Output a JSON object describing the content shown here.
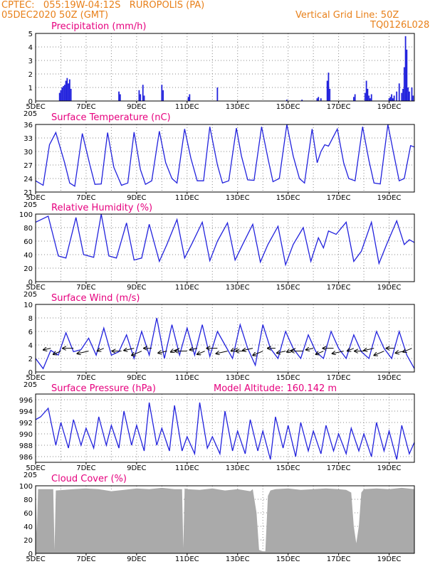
{
  "header": {
    "line1": "CPTEC:   055:19W-04:12S   RUROPOLIS (PA)",
    "line2": "05DEC2020 50Z (GMT)",
    "grid_note": "Vertical Grid Line: 50Z",
    "code": "TQ0126L028"
  },
  "colors": {
    "header": "#e8801a",
    "title": "#e6007e",
    "line": "#2222dd",
    "cloud": "#aaaaaa",
    "frame": "#000000",
    "grid": "#888888"
  },
  "chart_data": [
    {
      "type": "bar",
      "title": "Precipitation (mm/h)",
      "x_ticks": [
        "5DEC",
        "7DEC",
        "9DEC",
        "11DEC",
        "13DEC",
        "15DEC",
        "17DEC",
        "19DEC"
      ],
      "xlim": [
        5,
        20
      ],
      "y_ticks": [
        "0",
        "1",
        "2",
        "3",
        "4",
        "5"
      ],
      "ylim": [
        0,
        5
      ],
      "grid": true,
      "x": [
        5.95,
        6.0,
        6.05,
        6.1,
        6.15,
        6.2,
        6.25,
        6.3,
        6.35,
        6.4,
        8.3,
        8.35,
        9.1,
        9.15,
        9.25,
        9.3,
        10.0,
        10.05,
        11.05,
        11.1,
        12.2,
        14.95,
        15.55,
        16.15,
        16.2,
        16.3,
        16.55,
        16.6,
        16.65,
        17.6,
        17.65,
        18.05,
        18.1,
        18.15,
        18.2,
        18.25,
        18.3,
        19.9,
        19.95,
        19.0,
        19.05,
        19.1,
        19.15,
        19.2,
        19.3,
        19.4,
        19.5,
        19.55,
        19.6,
        19.65,
        19.7,
        19.75,
        19.8
      ],
      "values": [
        0.6,
        0.8,
        1.0,
        1.1,
        1.2,
        1.5,
        1.7,
        1.3,
        1.6,
        0.9,
        0.7,
        0.5,
        0.8,
        0.5,
        1.2,
        0.4,
        1.2,
        0.8,
        0.3,
        0.5,
        1.0,
        0.1,
        0.1,
        0.2,
        0.3,
        0.2,
        1.5,
        2.1,
        0.9,
        0.3,
        0.5,
        0.6,
        1.5,
        0.9,
        0.4,
        0.2,
        0.5,
        1.0,
        0.4,
        0.2,
        0.3,
        0.5,
        0.2,
        0.4,
        0.7,
        1.3,
        0.6,
        0.9,
        2.5,
        4.8,
        3.8,
        1.0,
        0.7
      ],
      "subtitle": "205"
    },
    {
      "type": "line",
      "title": "Surface Temperature (nC)",
      "x_ticks": [
        "5DEC",
        "7DEC",
        "9DEC",
        "11DEC",
        "13DEC",
        "15DEC",
        "17DEC",
        "19DEC"
      ],
      "xlim": [
        5,
        20
      ],
      "y_ticks": [
        "21",
        "24",
        "27",
        "30",
        "33",
        "36"
      ],
      "ylim": [
        21,
        36
      ],
      "grid": true,
      "x": [
        5.0,
        5.3,
        5.55,
        5.8,
        6.15,
        6.35,
        6.55,
        6.85,
        7.15,
        7.35,
        7.6,
        7.85,
        8.1,
        8.4,
        8.65,
        8.9,
        9.15,
        9.35,
        9.6,
        9.9,
        10.15,
        10.4,
        10.6,
        10.9,
        11.15,
        11.4,
        11.65,
        11.9,
        12.2,
        12.4,
        12.65,
        12.95,
        13.15,
        13.4,
        13.65,
        13.95,
        14.2,
        14.4,
        14.65,
        14.95,
        15.2,
        15.45,
        15.65,
        15.95,
        16.15,
        16.3,
        16.45,
        16.6,
        16.95,
        17.2,
        17.4,
        17.65,
        17.95,
        18.2,
        18.4,
        18.65,
        18.95,
        19.2,
        19.4,
        19.6,
        19.85,
        20.0
      ],
      "values": [
        23.5,
        22.5,
        31.5,
        34.2,
        27.5,
        23.0,
        22.3,
        34.0,
        27.0,
        22.7,
        22.8,
        34.2,
        26.5,
        22.5,
        23.0,
        34.3,
        26.0,
        22.7,
        23.5,
        34.5,
        27.5,
        24.0,
        23.0,
        35.0,
        28.5,
        23.5,
        23.5,
        35.5,
        27.0,
        23.0,
        23.5,
        35.2,
        29.0,
        23.7,
        23.6,
        35.5,
        28.5,
        23.3,
        24.0,
        36.0,
        29.0,
        24.0,
        23.0,
        35.0,
        27.5,
        30.0,
        31.5,
        31.2,
        35.0,
        27.5,
        24.0,
        23.5,
        35.5,
        28.0,
        23.0,
        22.8,
        36.0,
        29.0,
        23.5,
        24.0,
        31.3,
        31.0
      ],
      "subtitle": "205"
    },
    {
      "type": "line",
      "title": "Relative Humidity (%)",
      "x_ticks": [
        "5DEC",
        "7DEC",
        "9DEC",
        "11DEC",
        "13DEC",
        "15DEC",
        "17DEC",
        "19DEC"
      ],
      "xlim": [
        5,
        20
      ],
      "y_ticks": [
        "0",
        "20",
        "40",
        "60",
        "80",
        "100"
      ],
      "ylim": [
        0,
        100
      ],
      "grid": true,
      "x": [
        5.0,
        5.5,
        5.9,
        6.2,
        6.6,
        6.9,
        7.3,
        7.6,
        7.9,
        8.2,
        8.6,
        8.9,
        9.2,
        9.5,
        9.9,
        10.2,
        10.6,
        10.9,
        11.2,
        11.6,
        11.9,
        12.2,
        12.6,
        12.9,
        13.2,
        13.6,
        13.9,
        14.2,
        14.6,
        14.9,
        15.2,
        15.6,
        15.9,
        16.2,
        16.4,
        16.6,
        16.9,
        17.3,
        17.6,
        17.9,
        18.3,
        18.6,
        18.9,
        19.3,
        19.6,
        19.8,
        20.0
      ],
      "values": [
        88,
        97,
        38,
        35,
        95,
        40,
        36,
        100,
        38,
        35,
        87,
        32,
        35,
        85,
        30,
        55,
        92,
        35,
        57,
        88,
        31,
        60,
        87,
        32,
        55,
        85,
        29,
        55,
        82,
        25,
        55,
        80,
        30,
        65,
        50,
        75,
        70,
        88,
        30,
        45,
        88,
        27,
        55,
        90,
        55,
        62,
        58
      ],
      "subtitle": "205"
    },
    {
      "type": "line",
      "title": "Surface Wind (m/s)",
      "x_ticks": [
        "5DEC",
        "7DEC",
        "9DEC",
        "11DEC",
        "13DEC",
        "15DEC",
        "17DEC",
        "19DEC"
      ],
      "xlim": [
        5,
        20
      ],
      "y_ticks": [
        "0",
        "2",
        "4",
        "6",
        "8",
        "10"
      ],
      "ylim": [
        0,
        10
      ],
      "grid": true,
      "x": [
        5.0,
        5.3,
        5.6,
        5.9,
        6.2,
        6.5,
        6.8,
        7.1,
        7.4,
        7.7,
        8.0,
        8.3,
        8.6,
        8.9,
        9.2,
        9.5,
        9.8,
        10.1,
        10.4,
        10.7,
        11.0,
        11.3,
        11.6,
        11.9,
        12.2,
        12.5,
        12.8,
        13.1,
        13.4,
        13.7,
        14.0,
        14.3,
        14.6,
        14.9,
        15.2,
        15.5,
        15.8,
        16.1,
        16.4,
        16.7,
        17.0,
        17.3,
        17.6,
        17.9,
        18.2,
        18.5,
        18.8,
        19.1,
        19.4,
        19.7,
        20.0
      ],
      "values": [
        2.0,
        0.5,
        3.2,
        2.5,
        5.8,
        3.0,
        3.3,
        5.0,
        2.5,
        6.5,
        2.5,
        3.0,
        5.5,
        2.0,
        6.0,
        2.5,
        8.0,
        2.0,
        7.0,
        2.5,
        6.5,
        2.5,
        7.0,
        2.3,
        6.0,
        4.0,
        2.0,
        7.0,
        3.5,
        1.0,
        7.0,
        3.5,
        2.0,
        6.0,
        3.5,
        2.0,
        5.5,
        3.0,
        2.0,
        6.0,
        3.5,
        2.0,
        5.5,
        3.0,
        2.0,
        6.0,
        3.5,
        2.0,
        6.0,
        2.5,
        0.5
      ],
      "wind_arrows_x": [
        5.6,
        6.0,
        6.5,
        7.1,
        7.7,
        8.4,
        8.9,
        9.2,
        9.6,
        10.2,
        10.7,
        11.0,
        11.4,
        11.7,
        12.2,
        12.6,
        13.0,
        13.3,
        13.6,
        14.0,
        14.5,
        14.9,
        15.3,
        15.6,
        16.0,
        16.4,
        16.8,
        17.2,
        17.6,
        18.0,
        18.4,
        18.8,
        19.2,
        19.6,
        19.9
      ],
      "subtitle": "205"
    },
    {
      "type": "line",
      "title": "Surface Pressure (hPa)",
      "annotation": "Model Altitude: 160.142 m",
      "x_ticks": [
        "5DEC",
        "7DEC",
        "9DEC",
        "11DEC",
        "13DEC",
        "15DEC",
        "17DEC",
        "19DEC"
      ],
      "xlim": [
        5,
        20
      ],
      "y_ticks": [
        "986",
        "988",
        "990",
        "992",
        "994",
        "996"
      ],
      "ylim": [
        985,
        997
      ],
      "grid": true,
      "x": [
        5.0,
        5.2,
        5.5,
        5.8,
        6.0,
        6.3,
        6.5,
        6.8,
        7.0,
        7.3,
        7.5,
        7.8,
        8.0,
        8.3,
        8.5,
        8.8,
        9.0,
        9.3,
        9.5,
        9.8,
        10.0,
        10.3,
        10.5,
        10.8,
        11.0,
        11.3,
        11.5,
        11.8,
        12.0,
        12.3,
        12.5,
        12.8,
        13.0,
        13.3,
        13.5,
        13.8,
        14.0,
        14.3,
        14.5,
        14.8,
        15.0,
        15.3,
        15.5,
        15.8,
        16.0,
        16.3,
        16.5,
        16.8,
        17.0,
        17.3,
        17.5,
        17.8,
        18.0,
        18.3,
        18.5,
        18.8,
        19.0,
        19.3,
        19.5,
        19.8,
        20.0
      ],
      "values": [
        992.5,
        993.0,
        994.5,
        988.0,
        992.0,
        987.5,
        992.5,
        988.0,
        991.0,
        987.5,
        993.0,
        988.0,
        991.5,
        987.5,
        994.0,
        988.0,
        991.5,
        987.0,
        995.5,
        988.0,
        991.0,
        987.0,
        995.0,
        987.0,
        989.5,
        986.5,
        995.5,
        987.5,
        989.5,
        986.5,
        994.0,
        987.0,
        990.5,
        986.5,
        992.5,
        987.0,
        990.5,
        985.5,
        993.0,
        987.5,
        991.5,
        986.0,
        992.0,
        987.0,
        990.5,
        986.5,
        991.5,
        987.0,
        990.0,
        986.5,
        991.0,
        987.0,
        990.0,
        986.0,
        992.0,
        987.0,
        990.5,
        985.5,
        991.5,
        986.5,
        988.5
      ],
      "subtitle": "205"
    },
    {
      "type": "area",
      "title": "Cloud Cover (%)",
      "x_ticks": [
        "5DEC",
        "7DEC",
        "9DEC",
        "11DEC",
        "13DEC",
        "15DEC",
        "17DEC",
        "19DEC"
      ],
      "xlim": [
        5,
        20
      ],
      "y_ticks": [
        "0",
        "20",
        "40",
        "60",
        "80",
        "100"
      ],
      "ylim": [
        0,
        100
      ],
      "grid": true,
      "x": [
        5.0,
        5.05,
        5.1,
        5.7,
        5.75,
        5.8,
        6.5,
        7.0,
        7.5,
        8.0,
        8.5,
        9.0,
        9.5,
        10.0,
        10.5,
        10.8,
        10.85,
        10.9,
        11.0,
        11.5,
        12.0,
        12.5,
        13.0,
        13.5,
        13.6,
        13.75,
        13.85,
        14.0,
        14.1,
        14.2,
        14.3,
        14.5,
        15.0,
        15.5,
        16.0,
        16.5,
        17.0,
        17.3,
        17.5,
        17.6,
        17.7,
        17.8,
        17.9,
        18.0,
        18.5,
        19.0,
        19.5,
        20.0
      ],
      "values": [
        93,
        30,
        95,
        95,
        5,
        93,
        95,
        96,
        95,
        92,
        94,
        96,
        95,
        97,
        95,
        95,
        8,
        96,
        95,
        94,
        96,
        93,
        95,
        92,
        95,
        60,
        5,
        3,
        3,
        85,
        93,
        95,
        96,
        94,
        95,
        96,
        95,
        94,
        90,
        40,
        15,
        40,
        90,
        95,
        96,
        95,
        97,
        95
      ],
      "subtitle": ""
    }
  ]
}
